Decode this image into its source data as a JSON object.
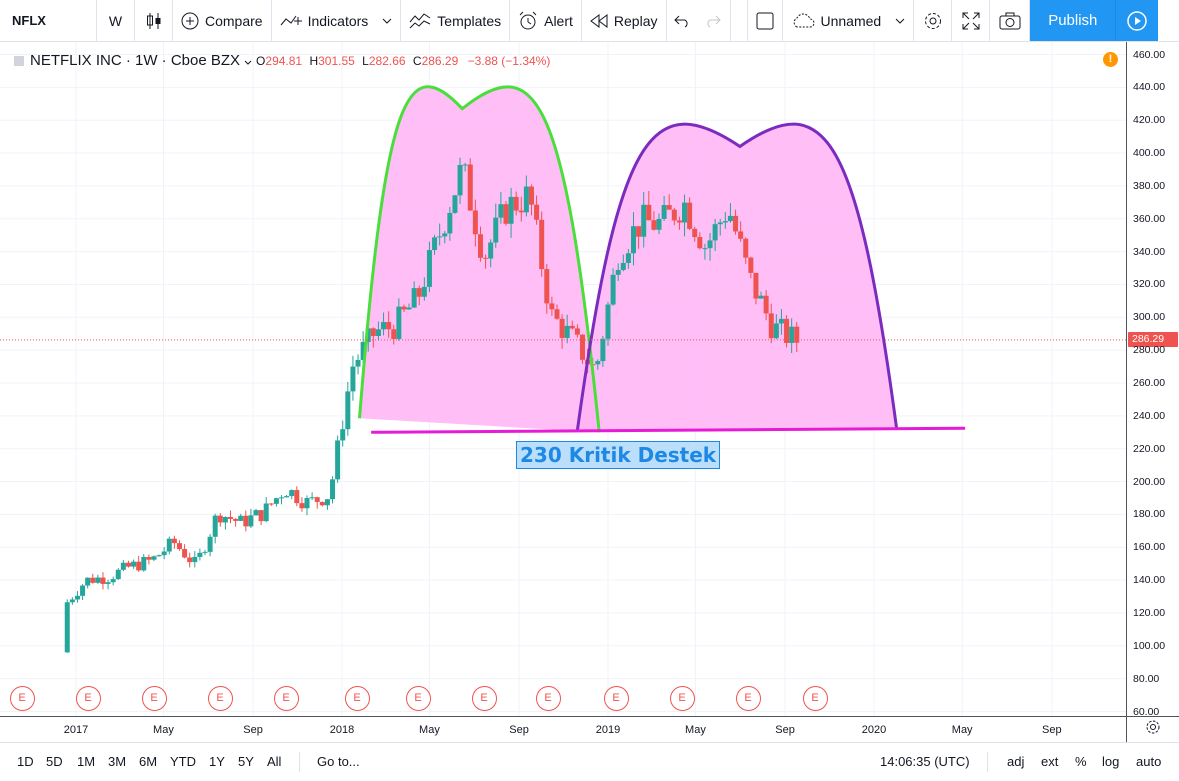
{
  "toolbar": {
    "symbol": "NFLX",
    "interval": "W",
    "compare_label": "Compare",
    "indicators_label": "Indicators",
    "templates_label": "Templates",
    "alert_label": "Alert",
    "replay_label": "Replay",
    "layout_name": "Unnamed",
    "publish_label": "Publish"
  },
  "legend": {
    "title": "NETFLIX INC · 1W · Cboe BZX",
    "open_key": "O",
    "open": "294.81",
    "high_key": "H",
    "high": "301.55",
    "low_key": "L",
    "low": "282.66",
    "close_key": "C",
    "close": "286.29",
    "change": "−3.88 (−1.34%)"
  },
  "info_badge": "!",
  "annotation": "230 Kritik Destek",
  "last_price_label": "286.29",
  "earnings_marker": "E",
  "earnings_marker_count": 13,
  "colors": {
    "up": "#26a69a",
    "down": "#ef5350",
    "arc_left": "#4ade3a",
    "arc_right": "#7b2cbf",
    "arc_fill": "#ffb3f5",
    "support_line": "#e61bd6",
    "accent": "#2196f3"
  },
  "chart_data": {
    "type": "candlestick",
    "symbol": "NETFLIX INC",
    "interval": "1W",
    "exchange": "Cboe BZX",
    "price_axis_ticks": [
      "460.00",
      "440.00",
      "420.00",
      "400.00",
      "380.00",
      "360.00",
      "340.00",
      "320.00",
      "300.00",
      "280.00",
      "260.00",
      "240.00",
      "220.00",
      "200.00",
      "180.00",
      "160.00",
      "140.00",
      "120.00",
      "100.00",
      "80.00",
      "60.00"
    ],
    "time_axis_ticks": [
      "2017",
      "May",
      "Sep",
      "2018",
      "May",
      "Sep",
      "2019",
      "May",
      "Sep",
      "2020",
      "May",
      "Sep"
    ],
    "ylim": [
      56,
      465
    ],
    "last_price": 286.29,
    "support_level": 230,
    "monthly_closes": [
      {
        "date": "2016-12",
        "close": 124
      },
      {
        "date": "2017-01",
        "close": 140
      },
      {
        "date": "2017-02",
        "close": 142
      },
      {
        "date": "2017-03",
        "close": 148
      },
      {
        "date": "2017-04",
        "close": 152
      },
      {
        "date": "2017-05",
        "close": 163
      },
      {
        "date": "2017-06",
        "close": 149
      },
      {
        "date": "2017-07",
        "close": 181
      },
      {
        "date": "2017-08",
        "close": 175
      },
      {
        "date": "2017-09",
        "close": 181
      },
      {
        "date": "2017-10",
        "close": 196
      },
      {
        "date": "2017-11",
        "close": 187
      },
      {
        "date": "2017-12",
        "close": 192
      },
      {
        "date": "2018-01",
        "close": 270
      },
      {
        "date": "2018-02",
        "close": 291
      },
      {
        "date": "2018-03",
        "close": 295
      },
      {
        "date": "2018-04",
        "close": 312
      },
      {
        "date": "2018-05",
        "close": 351
      },
      {
        "date": "2018-06",
        "close": 391
      },
      {
        "date": "2018-07",
        "close": 337
      },
      {
        "date": "2018-08",
        "close": 367
      },
      {
        "date": "2018-09",
        "close": 374
      },
      {
        "date": "2018-10",
        "close": 301
      },
      {
        "date": "2018-11",
        "close": 286
      },
      {
        "date": "2018-12",
        "close": 267
      },
      {
        "date": "2019-01",
        "close": 339
      },
      {
        "date": "2019-02",
        "close": 358
      },
      {
        "date": "2019-03",
        "close": 357
      },
      {
        "date": "2019-04",
        "close": 370
      },
      {
        "date": "2019-05",
        "close": 343
      },
      {
        "date": "2019-06",
        "close": 367
      },
      {
        "date": "2019-07",
        "close": 323
      },
      {
        "date": "2019-08",
        "close": 294
      },
      {
        "date": "2019-09",
        "close": 286
      }
    ]
  },
  "bottom_bar": {
    "ranges": [
      "1D",
      "5D",
      "1M",
      "3M",
      "6M",
      "YTD",
      "1Y",
      "5Y",
      "All"
    ],
    "goto_label": "Go to...",
    "time": "14:06:35 (UTC)",
    "adj": "adj",
    "ext": "ext",
    "percent": "%",
    "log": "log",
    "auto": "auto"
  }
}
